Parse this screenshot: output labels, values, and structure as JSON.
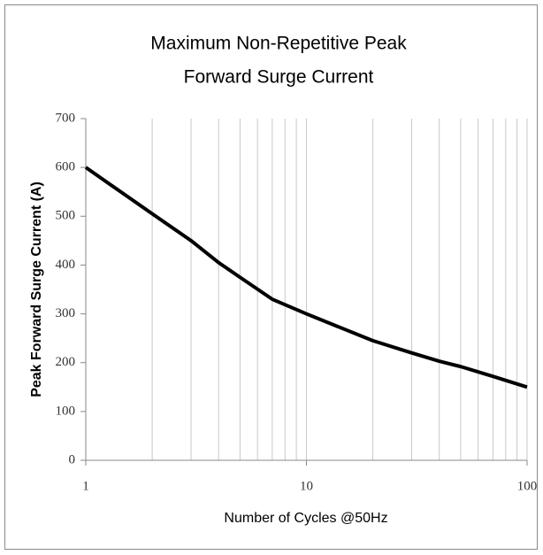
{
  "chart_data": {
    "type": "line",
    "title": [
      "Maximum Non-Repetitive Peak",
      "Forward Surge Current"
    ],
    "x_label": "Number of Cycles @50Hz",
    "y_label": "Peak Forward Surge Current (A)",
    "x": [
      1,
      2,
      3,
      4,
      5,
      7,
      10,
      20,
      30,
      40,
      50,
      70,
      100
    ],
    "series": [
      {
        "name": "Peak Forward Surge Current",
        "color": "#000000",
        "values": [
          600,
          505,
          450,
          405,
          375,
          330,
          300,
          245,
          220,
          203,
          192,
          172,
          150
        ]
      }
    ],
    "xscale": "log",
    "xlim": [
      1,
      100
    ],
    "xticks": [
      1,
      10,
      100
    ],
    "xgrid": [
      2,
      3,
      4,
      5,
      6,
      7,
      8,
      9,
      10,
      20,
      30,
      40,
      50,
      60,
      70,
      80,
      90,
      100
    ],
    "ylim": [
      0,
      700
    ],
    "yticks": [
      0,
      100,
      200,
      300,
      400,
      500,
      600,
      700
    ],
    "grid": true
  }
}
